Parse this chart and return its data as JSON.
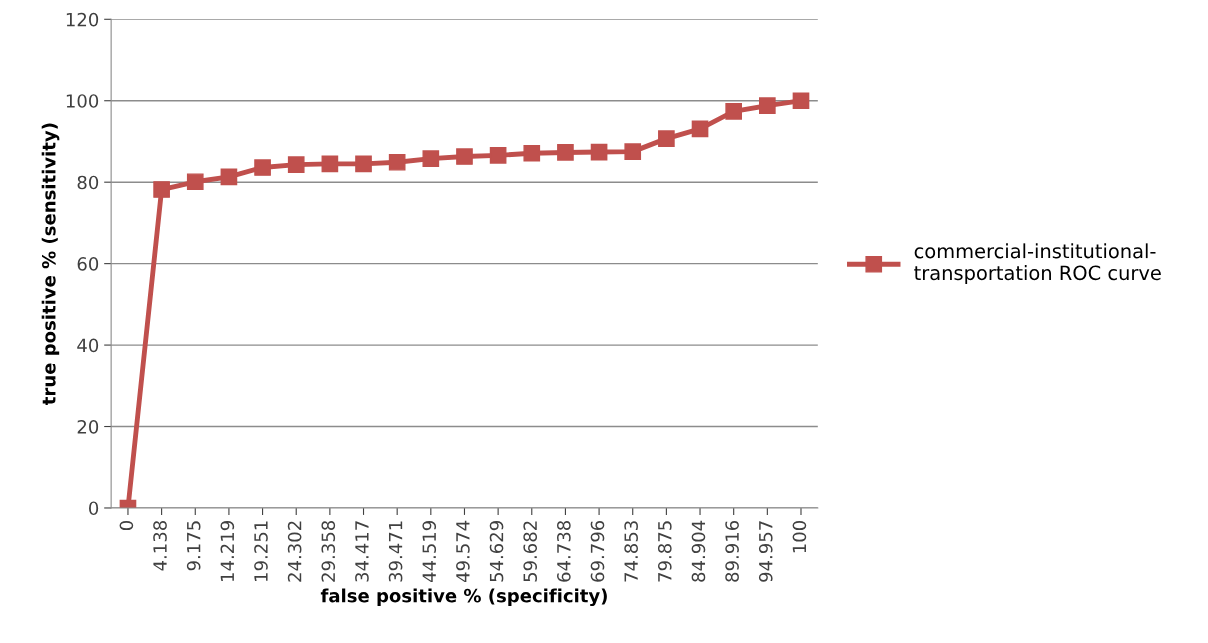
{
  "chart_data": {
    "type": "line",
    "xlabel": "false positive % (specificity)",
    "ylabel": "true positive % (sensitivity)",
    "categories": [
      "0",
      "4.138",
      "9.175",
      "14.219",
      "19.251",
      "24.302",
      "29.358",
      "34.417",
      "39.471",
      "44.519",
      "49.574",
      "54.629",
      "59.682",
      "64.738",
      "69.796",
      "74.853",
      "79.875",
      "84.904",
      "89.916",
      "94.957",
      "100"
    ],
    "series": [
      {
        "name": "commercial-institutional-transportation ROC curve",
        "color": "#c0504d",
        "values": [
          0,
          78.2,
          80.1,
          81.3,
          83.6,
          84.3,
          84.5,
          84.5,
          84.9,
          85.8,
          86.3,
          86.6,
          87.1,
          87.3,
          87.4,
          87.5,
          90.7,
          93.1,
          97.4,
          98.8,
          100
        ]
      }
    ],
    "ylim": [
      0,
      120
    ],
    "yticks": [
      0,
      20,
      40,
      60,
      80,
      100,
      120
    ],
    "grid": "y",
    "legend": "right",
    "marker": "square",
    "line_style": "solid"
  }
}
